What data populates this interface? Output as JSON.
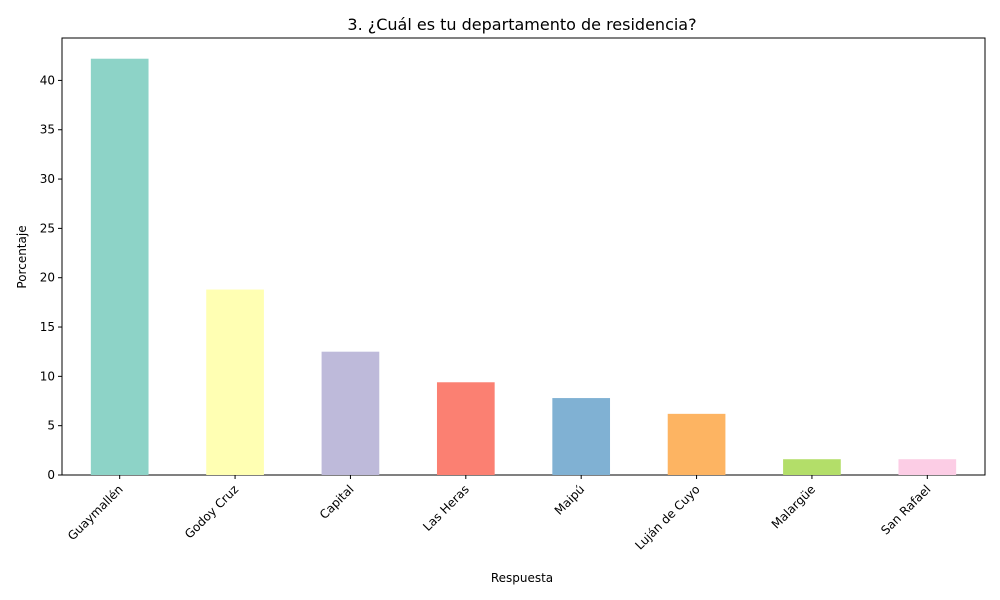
{
  "chart_data": {
    "type": "bar",
    "title": "3. ¿Cuál es tu departamento de residencia?",
    "xlabel": "Respuesta",
    "ylabel": "Porcentaje",
    "categories": [
      "Guaymallén",
      "Godoy Cruz",
      "Capital",
      "Las Heras",
      "Maipú",
      "Luján de Cuyo",
      "Malargüe",
      "San Rafael"
    ],
    "values": [
      42.2,
      18.8,
      12.5,
      9.4,
      7.8,
      6.2,
      1.6,
      1.6
    ],
    "colors": [
      "#8dd3c7",
      "#ffffb3",
      "#bebada",
      "#fb8072",
      "#80b1d3",
      "#fdb462",
      "#b3de69",
      "#fccde5"
    ],
    "yticks": [
      0,
      5,
      10,
      15,
      20,
      25,
      30,
      35,
      40
    ],
    "ylim": [
      0,
      44.3
    ],
    "grid": false,
    "legend": "none"
  }
}
